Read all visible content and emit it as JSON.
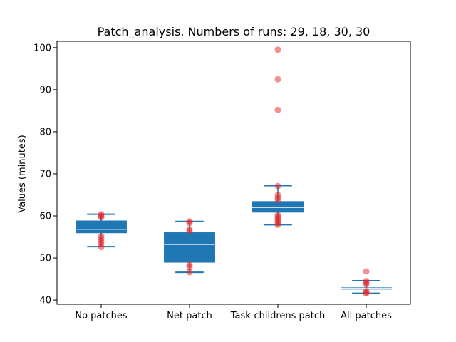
{
  "chart_data": {
    "type": "box",
    "title": "Patch_analysis. Numbers of runs: 29, 18, 30, 30",
    "xlabel": "",
    "ylabel": "Values (minutes)",
    "ylim": [
      39,
      101.5
    ],
    "yticks": [
      40,
      50,
      60,
      70,
      80,
      90,
      100
    ],
    "categories": [
      "No patches",
      "Net patch",
      "Task-childrens patch",
      "All patches"
    ],
    "boxes": [
      {
        "category": "No patches",
        "whisker_low": 52.7,
        "q1": 55.9,
        "median": 56.8,
        "q3": 58.9,
        "whisker_high": 60.4,
        "points": [
          60.4,
          60.0,
          59.7,
          55.2,
          54.6,
          54.0,
          53.4,
          52.6
        ]
      },
      {
        "category": "Net patch",
        "whisker_low": 46.6,
        "q1": 48.9,
        "median": 53.2,
        "q3": 56.1,
        "whisker_high": 58.7,
        "points": [
          58.7,
          58.3,
          56.8,
          56.4,
          48.4,
          47.8,
          46.6
        ]
      },
      {
        "category": "Task-childrens patch",
        "whisker_low": 57.9,
        "q1": 60.8,
        "median": 62.0,
        "q3": 63.5,
        "whisker_high": 67.2,
        "points": [
          99.5,
          92.5,
          85.2,
          67.1,
          65.0,
          64.3,
          63.8,
          60.2,
          59.7,
          59.3,
          58.8,
          58.3,
          57.9
        ]
      },
      {
        "category": "All patches",
        "whisker_low": 41.6,
        "q1": 42.5,
        "median": 42.8,
        "q3": 43.0,
        "whisker_high": 44.6,
        "points": [
          46.8,
          44.5,
          44.1,
          43.7,
          42.1,
          41.8,
          41.6
        ]
      }
    ],
    "colors": {
      "box": "#1f77b4",
      "median": "#ffffff",
      "points": "#e8212180",
      "axis": "#000000"
    },
    "grid": false,
    "legend": "none"
  }
}
